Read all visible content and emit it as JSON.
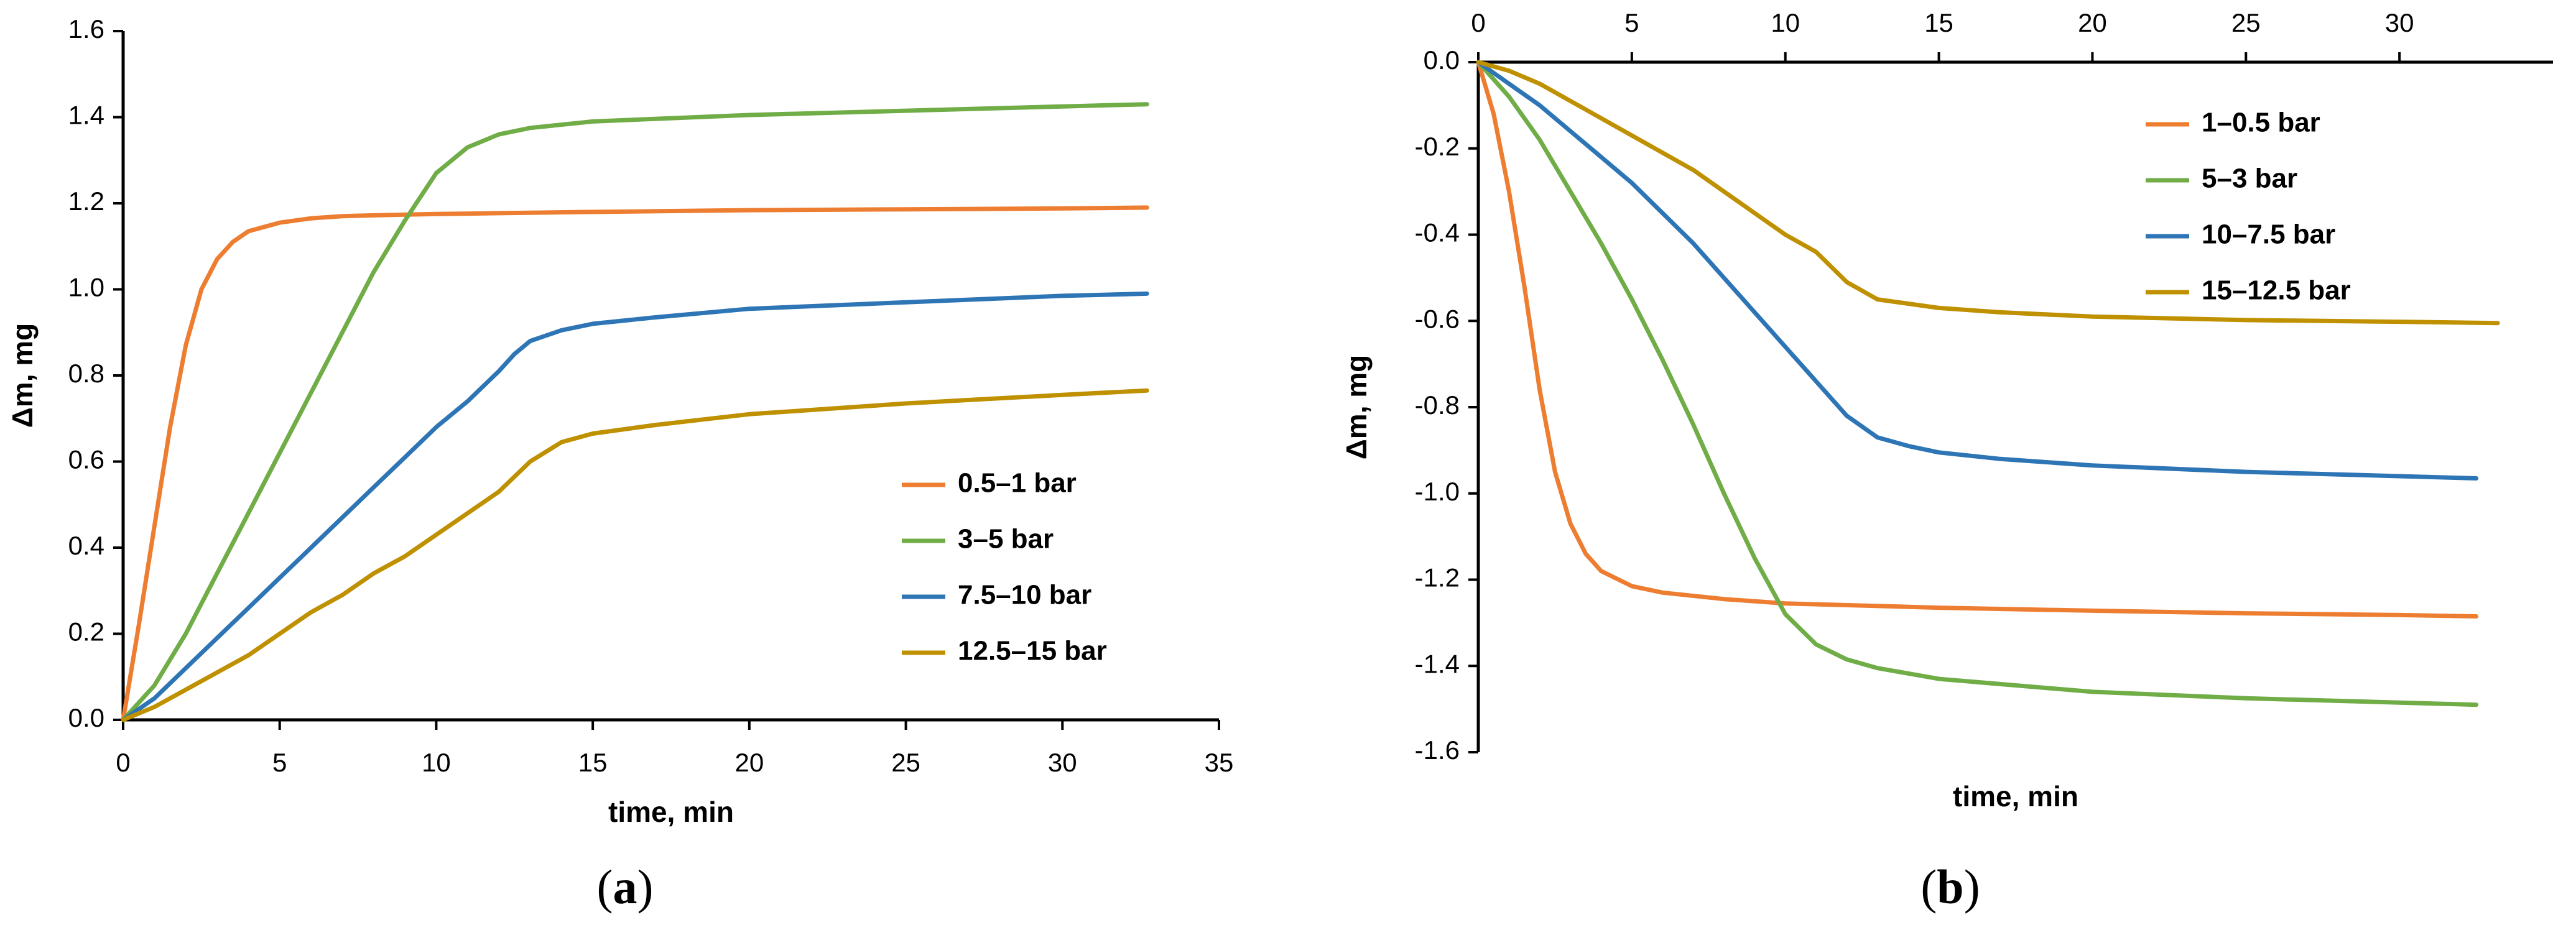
{
  "chart_data": [
    {
      "id": "a",
      "type": "line",
      "panel_label": "a",
      "xlabel": "time, min",
      "ylabel": "Δm, mg",
      "xlim": [
        0,
        35
      ],
      "ylim": [
        0.0,
        1.6
      ],
      "xticks": [
        0,
        5,
        10,
        15,
        20,
        25,
        30,
        35
      ],
      "yticks": [
        0.0,
        0.2,
        0.4,
        0.6,
        0.8,
        1.0,
        1.2,
        1.4,
        1.6
      ],
      "ytick_labels": [
        "0.0",
        "0.2",
        "0.4",
        "0.6",
        "0.8",
        "1.0",
        "1.2",
        "1.4",
        "1.6"
      ],
      "legend_position": "center-right",
      "series": [
        {
          "name": "0.5–1 bar",
          "color": "#ED7D31",
          "x": [
            0,
            0.5,
            1,
            1.5,
            2,
            2.5,
            3,
            3.5,
            4,
            5,
            6,
            7,
            8,
            10,
            12,
            15,
            20,
            25,
            30,
            32.7
          ],
          "y": [
            0,
            0.22,
            0.45,
            0.68,
            0.87,
            1.0,
            1.07,
            1.11,
            1.135,
            1.155,
            1.165,
            1.17,
            1.172,
            1.175,
            1.177,
            1.18,
            1.184,
            1.186,
            1.188,
            1.19
          ]
        },
        {
          "name": "3–5 bar",
          "color": "#70AD47",
          "x": [
            0,
            1,
            2,
            3,
            4,
            5,
            6,
            7,
            8,
            9,
            10,
            11,
            12,
            13,
            15,
            20,
            25,
            30,
            32.7
          ],
          "y": [
            0,
            0.08,
            0.2,
            0.34,
            0.48,
            0.62,
            0.76,
            0.9,
            1.04,
            1.16,
            1.27,
            1.33,
            1.36,
            1.375,
            1.39,
            1.405,
            1.415,
            1.425,
            1.43
          ]
        },
        {
          "name": "7.5–10 bar",
          "color": "#2E75B6",
          "x": [
            0,
            1,
            2,
            3,
            4,
            5,
            6,
            7,
            8,
            9,
            10,
            11,
            12,
            12.5,
            13,
            14,
            15,
            17,
            20,
            25,
            30,
            32.7
          ],
          "y": [
            0,
            0.05,
            0.12,
            0.19,
            0.26,
            0.33,
            0.4,
            0.47,
            0.54,
            0.61,
            0.68,
            0.74,
            0.81,
            0.85,
            0.88,
            0.905,
            0.92,
            0.935,
            0.955,
            0.97,
            0.985,
            0.99
          ]
        },
        {
          "name": "12.5–15 bar",
          "color": "#BF9000",
          "x": [
            0,
            1,
            2,
            3,
            4,
            5,
            6,
            7,
            8,
            9,
            10,
            11,
            12,
            13,
            14,
            15,
            17,
            20,
            25,
            30,
            32.7
          ],
          "y": [
            0,
            0.03,
            0.07,
            0.11,
            0.15,
            0.2,
            0.25,
            0.29,
            0.34,
            0.38,
            0.43,
            0.48,
            0.53,
            0.6,
            0.645,
            0.665,
            0.685,
            0.71,
            0.735,
            0.755,
            0.765
          ]
        }
      ]
    },
    {
      "id": "b",
      "type": "line",
      "panel_label": "b",
      "xlabel": "time, min",
      "ylabel": "Δm, mg",
      "xlim": [
        0,
        35
      ],
      "ylim": [
        -1.6,
        0.0
      ],
      "xticks": [
        0,
        5,
        10,
        15,
        20,
        25,
        30
      ],
      "yticks": [
        0.0,
        -0.2,
        -0.4,
        -0.6,
        -0.8,
        -1.0,
        -1.2,
        -1.4,
        -1.6
      ],
      "ytick_labels": [
        "0.0",
        "-0.2",
        "-0.4",
        "-0.6",
        "-0.8",
        "-1.0",
        "-1.2",
        "-1.4",
        "-1.6"
      ],
      "legend_position": "top-right",
      "series": [
        {
          "name": "1–0.5 bar",
          "color": "#ED7D31",
          "x": [
            0,
            0.5,
            1,
            1.5,
            2,
            2.5,
            3,
            3.5,
            4,
            5,
            6,
            8,
            10,
            15,
            20,
            25,
            30,
            32.5
          ],
          "y": [
            0,
            -0.12,
            -0.3,
            -0.52,
            -0.76,
            -0.95,
            -1.07,
            -1.14,
            -1.18,
            -1.215,
            -1.23,
            -1.245,
            -1.255,
            -1.265,
            -1.272,
            -1.278,
            -1.282,
            -1.285
          ]
        },
        {
          "name": "5–3 bar",
          "color": "#70AD47",
          "x": [
            0,
            1,
            2,
            3,
            4,
            5,
            6,
            7,
            8,
            9,
            10,
            11,
            12,
            13,
            15,
            20,
            25,
            30,
            32.5
          ],
          "y": [
            0,
            -0.08,
            -0.18,
            -0.3,
            -0.42,
            -0.55,
            -0.69,
            -0.84,
            -1.0,
            -1.15,
            -1.28,
            -1.35,
            -1.385,
            -1.405,
            -1.43,
            -1.46,
            -1.475,
            -1.485,
            -1.49
          ]
        },
        {
          "name": "10–7.5 bar",
          "color": "#2E75B6",
          "x": [
            0,
            1,
            2,
            3,
            4,
            5,
            6,
            7,
            8,
            9,
            10,
            11,
            12,
            13,
            14,
            15,
            17,
            20,
            25,
            30,
            32.5
          ],
          "y": [
            0,
            -0.05,
            -0.1,
            -0.16,
            -0.22,
            -0.28,
            -0.35,
            -0.42,
            -0.5,
            -0.58,
            -0.66,
            -0.74,
            -0.82,
            -0.87,
            -0.89,
            -0.905,
            -0.92,
            -0.935,
            -0.95,
            -0.96,
            -0.965
          ]
        },
        {
          "name": "15–12.5 bar",
          "color": "#BF9000",
          "x": [
            0,
            1,
            2,
            3,
            4,
            5,
            6,
            7,
            8,
            9,
            10,
            11,
            12,
            13,
            15,
            17,
            20,
            25,
            30,
            33.2
          ],
          "y": [
            0,
            -0.02,
            -0.05,
            -0.09,
            -0.13,
            -0.17,
            -0.21,
            -0.25,
            -0.3,
            -0.35,
            -0.4,
            -0.44,
            -0.51,
            -0.55,
            -0.57,
            -0.58,
            -0.59,
            -0.598,
            -0.602,
            -0.605
          ]
        }
      ]
    }
  ]
}
